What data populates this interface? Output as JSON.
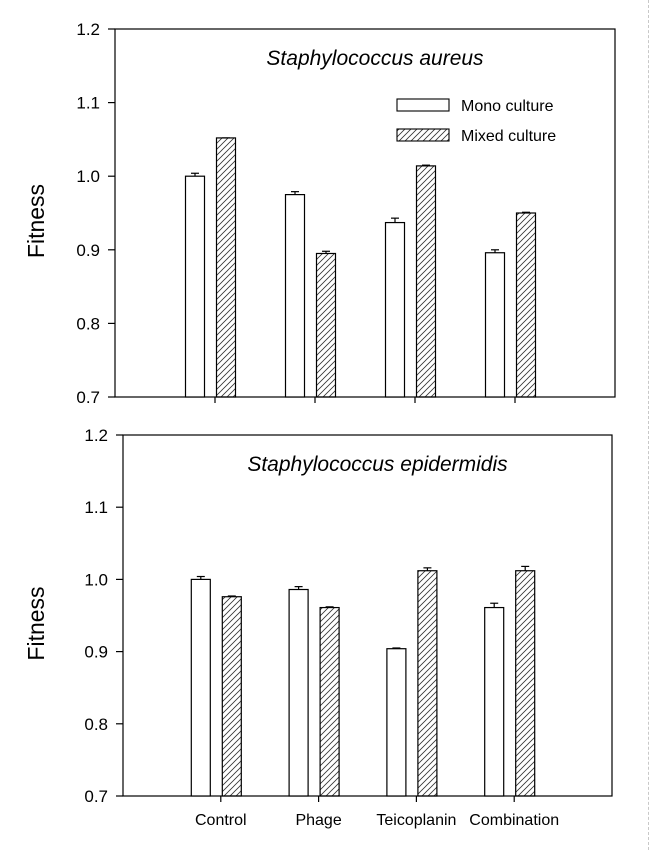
{
  "chart_data": [
    {
      "type": "bar",
      "title": "Staphylococcus aureus",
      "ylabel": "Fitness",
      "xlabel": "",
      "ylim": [
        0.7,
        1.2
      ],
      "yticks": [
        "0.7",
        "0.8",
        "0.9",
        "1.0",
        "1.1",
        "1.2"
      ],
      "categories": [
        "Control",
        "Phage",
        "Teicoplanin",
        "Combination"
      ],
      "show_category_labels": false,
      "legend": "top-right",
      "series": [
        {
          "name": "Mono culture",
          "pattern": "open",
          "values": [
            1.0,
            0.975,
            0.937,
            0.896
          ],
          "errors": [
            0.004,
            0.004,
            0.006,
            0.004
          ]
        },
        {
          "name": "Mixed culture",
          "pattern": "hatched",
          "values": [
            1.052,
            0.895,
            1.014,
            0.95
          ],
          "errors": [
            0.0,
            0.003,
            0.001,
            0.001
          ]
        }
      ]
    },
    {
      "type": "bar",
      "title": "Staphylococcus epidermidis",
      "ylabel": "Fitness",
      "xlabel": "",
      "ylim": [
        0.7,
        1.2
      ],
      "yticks": [
        "0.7",
        "0.8",
        "0.9",
        "1.0",
        "1.1",
        "1.2"
      ],
      "categories": [
        "Control",
        "Phage",
        "Teicoplanin",
        "Combination"
      ],
      "show_category_labels": true,
      "legend": "none",
      "series": [
        {
          "name": "Mono culture",
          "pattern": "open",
          "values": [
            1.0,
            0.986,
            0.904,
            0.961
          ],
          "errors": [
            0.004,
            0.004,
            0.001,
            0.006
          ]
        },
        {
          "name": "Mixed culture",
          "pattern": "hatched",
          "values": [
            0.976,
            0.961,
            1.012,
            1.012
          ],
          "errors": [
            0.001,
            0.001,
            0.004,
            0.006
          ]
        }
      ]
    }
  ]
}
